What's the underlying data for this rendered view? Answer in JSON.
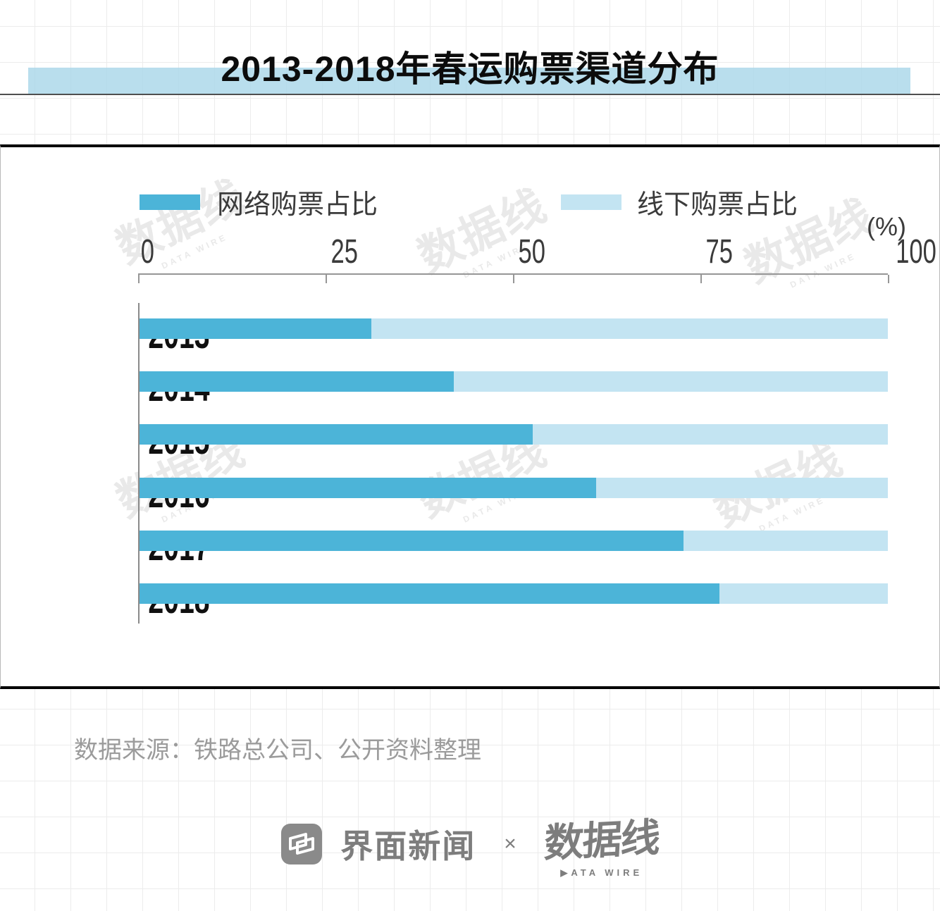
{
  "title": "2013-2018年春运购票渠道分布",
  "legend": {
    "online_label": "网络购票占比",
    "offline_label": "线下购票占比"
  },
  "axis": {
    "unit": "(%)",
    "ticks": [
      "0",
      "25",
      "50",
      "75",
      "100"
    ]
  },
  "colors": {
    "online": "#4cb4d8",
    "offline": "#c3e4f2",
    "title_highlight": "rgba(173,216,234,0.85)"
  },
  "watermark": {
    "cn": "数据线",
    "en": "DATA WIRE"
  },
  "source_note": "数据来源：铁路总公司、公开资料整理",
  "footer": {
    "jiemian_name": "界面新闻",
    "separator": "×",
    "datawire_cn": "数据线",
    "datawire_en": "▶ATA WIRE"
  },
  "chart_data": {
    "type": "bar",
    "orientation": "horizontal",
    "stacked": true,
    "title": "2013-2018年春运购票渠道分布",
    "categories": [
      "2013",
      "2014",
      "2015",
      "2016",
      "2017",
      "2018"
    ],
    "series": [
      {
        "name": "网络购票占比",
        "values": [
          31,
          42,
          52.5,
          61,
          72.7,
          77.5
        ]
      },
      {
        "name": "线下购票占比",
        "values": [
          69,
          58,
          47.5,
          39,
          27.3,
          22.5
        ]
      }
    ],
    "xlabel": "(%)",
    "xlim": [
      0,
      100
    ],
    "xticks": [
      0,
      25,
      50,
      75,
      100
    ],
    "legend_position": "top",
    "grid": false
  }
}
